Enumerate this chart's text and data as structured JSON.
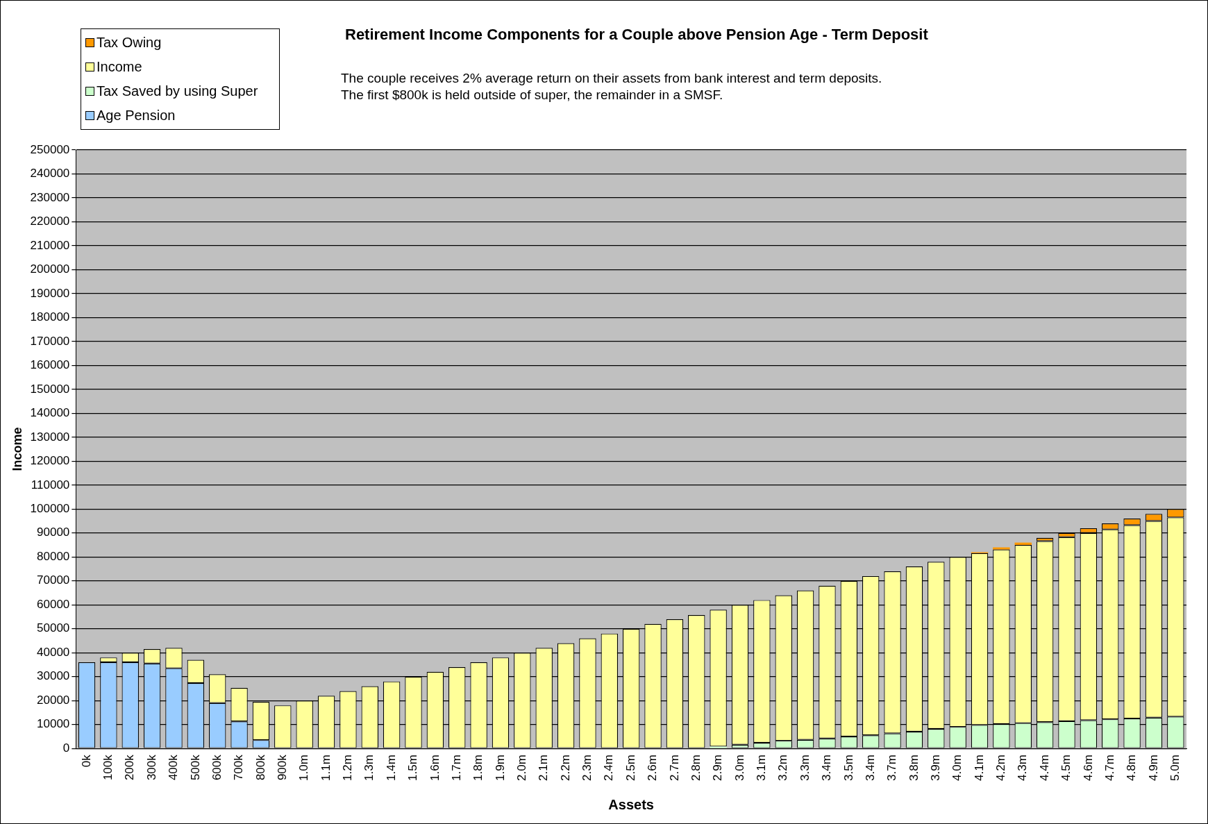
{
  "chart_data": {
    "type": "bar",
    "title": "Retirement Income Components for a Couple above Pension Age - Term Deposit",
    "annotations": [
      "The couple receives 2% average return  on their assets from bank interest and term deposits.",
      "The first $800k is held outside of super, the remainder in a SMSF."
    ],
    "xlabel": "Assets",
    "ylabel": "Income",
    "categories": [
      "0k",
      "100k",
      "200k",
      "300k",
      "400k",
      "500k",
      "600k",
      "700k",
      "800k",
      "900k",
      "1.0m",
      "1.1m",
      "1.2m",
      "1.3m",
      "1.4m",
      "1.5m",
      "1.6m",
      "1.7m",
      "1.8m",
      "1.9m",
      "2.0m",
      "2.1m",
      "2.2m",
      "2.3m",
      "2.4m",
      "2.5m",
      "2.6m",
      "2.7m",
      "2.8m",
      "2.9m",
      "3.0m",
      "3.1m",
      "3.2m",
      "3.3m",
      "3.4m",
      "3.5m",
      "3.4m",
      "3.7m",
      "3.8m",
      "3.9m",
      "4.0m",
      "4.1m",
      "4.2m",
      "4.3m",
      "4.4m",
      "4.5m",
      "4.6m",
      "4.7m",
      "4.8m",
      "4.9m",
      "5.0m"
    ],
    "stacked": true,
    "series": [
      {
        "name": "Age Pension",
        "color": "#99ccff",
        "values": [
          36000,
          36000,
          36000,
          35500,
          33500,
          27300,
          19000,
          11300,
          3500,
          0,
          0,
          0,
          0,
          0,
          0,
          0,
          0,
          0,
          0,
          0,
          0,
          0,
          0,
          0,
          0,
          0,
          0,
          0,
          0,
          0,
          0,
          0,
          0,
          0,
          0,
          0,
          0,
          0,
          0,
          0,
          0,
          0,
          0,
          0,
          0,
          0,
          0,
          0,
          0,
          0,
          0
        ]
      },
      {
        "name": "Tax Saved by using Super",
        "color": "#ccffcc",
        "values": [
          0,
          0,
          0,
          0,
          0,
          0,
          0,
          0,
          0,
          0,
          0,
          0,
          0,
          0,
          0,
          0,
          0,
          0,
          0,
          0,
          0,
          0,
          0,
          0,
          0,
          0,
          0,
          0,
          null,
          800,
          1600,
          2400,
          3200,
          3600,
          4200,
          5000,
          5500,
          6300,
          7000,
          8200,
          9000,
          9800,
          10200,
          10600,
          11000,
          11400,
          11800,
          12200,
          12500,
          12900,
          13300
        ]
      },
      {
        "name": "Income",
        "color": "#ffff99",
        "values": [
          0,
          2000,
          4000,
          6000,
          8500,
          9700,
          12000,
          14000,
          16000,
          18000,
          20000,
          22000,
          24000,
          26000,
          28000,
          30000,
          32000,
          34000,
          36000,
          38000,
          40000,
          42000,
          44000,
          46000,
          48000,
          50000,
          52000,
          54000,
          55700,
          57200,
          58400,
          59600,
          60800,
          62400,
          63800,
          65000,
          66500,
          67700,
          69000,
          69800,
          71000,
          71800,
          72900,
          74400,
          75600,
          76900,
          78200,
          79300,
          80800,
          82100,
          83200
        ]
      },
      {
        "name": "Tax Owing",
        "color": "#ff9900",
        "values": [
          0,
          0,
          0,
          0,
          0,
          0,
          0,
          0,
          0,
          0,
          0,
          0,
          0,
          0,
          0,
          0,
          0,
          0,
          0,
          0,
          0,
          0,
          0,
          0,
          0,
          0,
          0,
          0,
          0,
          0,
          0,
          0,
          0,
          0,
          0,
          0,
          0,
          0,
          0,
          0,
          0,
          400,
          900,
          1000,
          1400,
          1700,
          2000,
          2500,
          2700,
          3000,
          3500
        ]
      }
    ],
    "ylim": [
      0,
      250000
    ],
    "yticks": [
      0,
      10000,
      20000,
      30000,
      40000,
      50000,
      60000,
      70000,
      80000,
      90000,
      100000,
      110000,
      120000,
      130000,
      140000,
      150000,
      160000,
      170000,
      180000,
      190000,
      200000,
      210000,
      220000,
      230000,
      240000,
      250000
    ],
    "grid": "y",
    "legend": "top left"
  }
}
